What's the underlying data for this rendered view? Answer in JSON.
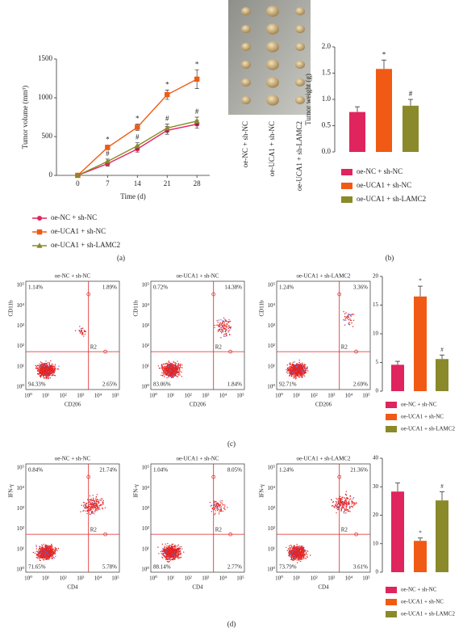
{
  "chart_data": [
    {
      "type": "line",
      "xlabel": "Time (d)",
      "ylabel": "Tumor volume (mm³)",
      "x": [
        0,
        7,
        14,
        21,
        28
      ],
      "xlim": [
        -5,
        31
      ],
      "xticks": [
        0,
        7,
        14,
        21,
        28
      ],
      "ylim": [
        0,
        1500
      ],
      "yticks": [
        0,
        500,
        1000,
        1500
      ],
      "series": [
        {
          "name": "oe-NC + sh-NC",
          "color": "#e0245e",
          "marker": "circle",
          "values": [
            0,
            150,
            340,
            580,
            660
          ],
          "errors": [
            0,
            30,
            40,
            50,
            50
          ]
        },
        {
          "name": "oe-UCA1 + sh-NC",
          "color": "#f05a14",
          "marker": "square",
          "values": [
            0,
            360,
            620,
            1040,
            1240
          ],
          "errors": [
            0,
            30,
            40,
            60,
            120
          ],
          "labels": [
            null,
            "*",
            "*",
            "*",
            "*"
          ]
        },
        {
          "name": "oe-UCA1 + sh-LAMC2",
          "color": "#8a8a2a",
          "marker": "triangle",
          "values": [
            0,
            180,
            380,
            610,
            700
          ],
          "errors": [
            0,
            30,
            40,
            50,
            50
          ],
          "labels": [
            null,
            "#",
            "#",
            "#",
            "#"
          ]
        }
      ]
    },
    {
      "type": "bar",
      "ylabel": "Tumor weight (g)",
      "categories": [
        "oe-NC + sh-NC",
        "oe-UCA1 + sh-NC",
        "oe-UCA1 + sh-LAMC2"
      ],
      "colors": [
        "#e0245e",
        "#f05a14",
        "#8a8a2a"
      ],
      "values": [
        0.76,
        1.58,
        0.88
      ],
      "errors": [
        0.1,
        0.17,
        0.12
      ],
      "labels": [
        null,
        "*",
        "#"
      ],
      "ylim": [
        0,
        2
      ],
      "yticks": [
        {
          "value": 0,
          "label": "0.0"
        },
        0.5,
        {
          "value": 1,
          "label": "1.0"
        },
        1.5,
        {
          "value": 2,
          "label": "2.0"
        }
      ]
    },
    {
      "type": "bar",
      "ylabel": "CD206⁺ CD11b cell (%)",
      "categories": [
        "oe-NC + sh-NC",
        "oe-UCA1 + sh-NC",
        "oe-UCA1 + sh-LAMC2"
      ],
      "colors": [
        "#e0245e",
        "#f05a14",
        "#8a8a2a"
      ],
      "values": [
        4.6,
        16.5,
        5.6
      ],
      "errors": [
        0.6,
        1.8,
        0.7
      ],
      "labels": [
        null,
        "*",
        "#"
      ],
      "ylim": [
        0,
        20
      ],
      "yticks": [
        0,
        5,
        10,
        15,
        20
      ]
    },
    {
      "type": "bar",
      "ylabel": "IFN-γ⁺ CD4⁺ T cell (%)",
      "categories": [
        "oe-NC + sh-NC",
        "oe-UCA1 + sh-NC",
        "oe-UCA1 + sh-LAMC2"
      ],
      "colors": [
        "#e0245e",
        "#f05a14",
        "#8a8a2a"
      ],
      "values": [
        28.3,
        11,
        25.2
      ],
      "errors": [
        3,
        1,
        3
      ],
      "labels": [
        null,
        "*",
        "#"
      ],
      "ylim": [
        0,
        40
      ],
      "yticks": [
        0,
        10,
        20,
        30,
        40
      ]
    }
  ],
  "panel_labels": [
    "(a)",
    "(b)",
    "(c)",
    "(d)"
  ],
  "tumor_photo_labels": [
    "oe-NC + sh-NC",
    "oe-UCA1 + sh-NC",
    "oe-UCA1 + sh-LAMC2"
  ],
  "flow_c": {
    "xlabel": "CD206",
    "ylabel": "CD11b",
    "gate": "R2",
    "axis_ticks": [
      "10⁰",
      "10¹",
      "10²",
      "10³",
      "10⁴",
      "10⁵"
    ],
    "plots": [
      {
        "title": "oe-NC + sh-NC",
        "quadrants": [
          "1.14%",
          "1.89%",
          "94.33%",
          "2.65%"
        ]
      },
      {
        "title": "oe-UCA1 + sh-NC",
        "quadrants": [
          "0.72%",
          "14.38%",
          "83.06%",
          "1.84%"
        ]
      },
      {
        "title": "oe-UCA1 + sh-LAMC2",
        "quadrants": [
          "1.24%",
          "3.36%",
          "92.71%",
          "2.69%"
        ]
      }
    ]
  },
  "flow_d": {
    "xlabel": "CD4",
    "ylabel": "IFN-γ",
    "gate": "R2",
    "axis_ticks": [
      "10⁰",
      "10¹",
      "10²",
      "10³",
      "10⁴",
      "10⁵"
    ],
    "plots": [
      {
        "title": "oe-NC + sh-NC",
        "quadrants": [
          "0.84%",
          "21.74%",
          "71.65%",
          "5.78%"
        ]
      },
      {
        "title": "oe-UCA1 + sh-NC",
        "quadrants": [
          "1.04%",
          "8.05%",
          "88.14%",
          "2.77%"
        ]
      },
      {
        "title": "oe-UCA1 + sh-LAMC2",
        "quadrants": [
          "1.24%",
          "21.36%",
          "73.79%",
          "3.61%"
        ]
      }
    ]
  }
}
